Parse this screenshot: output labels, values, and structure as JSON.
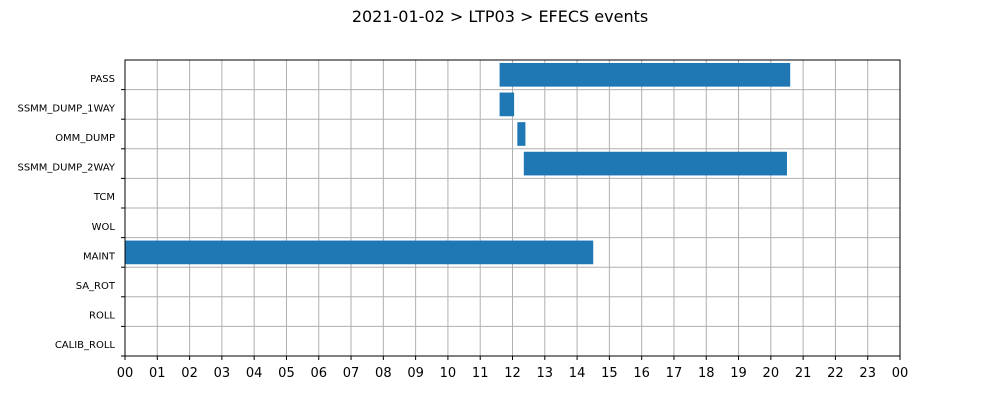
{
  "chart_data": {
    "type": "bar",
    "orientation": "horizontal",
    "title": "2021-01-02 > LTP03 > EFECS events",
    "xlabel": "",
    "ylabel": "",
    "xlim": [
      0,
      24
    ],
    "x_unit": "hour",
    "x_tick_labels": [
      "00",
      "01",
      "02",
      "03",
      "04",
      "05",
      "06",
      "07",
      "08",
      "09",
      "10",
      "11",
      "12",
      "13",
      "14",
      "15",
      "16",
      "17",
      "18",
      "19",
      "20",
      "21",
      "22",
      "23",
      "00"
    ],
    "categories": [
      "PASS",
      "SSMM_DUMP_1WAY",
      "OMM_DUMP",
      "SSMM_DUMP_2WAY",
      "TCM",
      "WOL",
      "MAINT",
      "SA_ROT",
      "ROLL",
      "CALIB_ROLL"
    ],
    "events": [
      {
        "category": "PASS",
        "start": 11.6,
        "end": 20.6
      },
      {
        "category": "SSMM_DUMP_1WAY",
        "start": 11.6,
        "end": 12.05
      },
      {
        "category": "OMM_DUMP",
        "start": 12.15,
        "end": 12.4
      },
      {
        "category": "SSMM_DUMP_2WAY",
        "start": 12.35,
        "end": 20.5
      },
      {
        "category": "MAINT",
        "start": 0.0,
        "end": 14.5
      }
    ],
    "grid": true,
    "legend": "none",
    "bar_color": "#1f77b4",
    "grid_color": "#b0b0b0"
  }
}
